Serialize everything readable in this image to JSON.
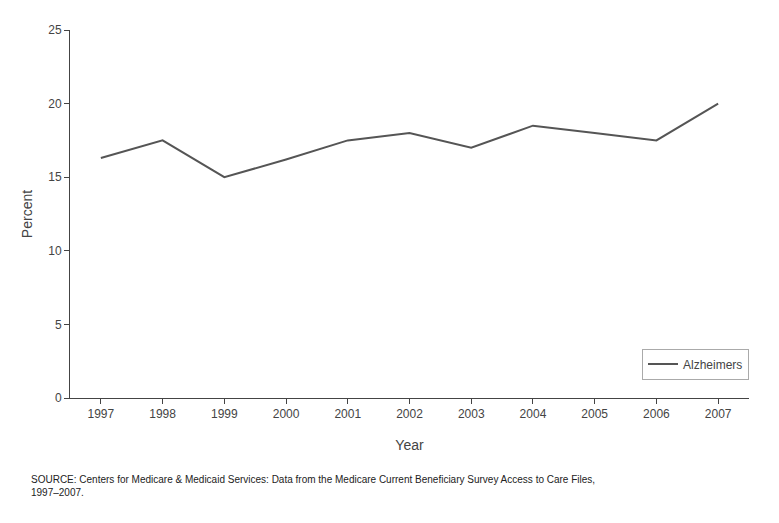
{
  "chart_data": {
    "type": "line",
    "x": [
      1997,
      1998,
      1999,
      2000,
      2001,
      2002,
      2003,
      2004,
      2005,
      2006,
      2007
    ],
    "series": [
      {
        "name": "Alzheimers",
        "color": "#555555",
        "values": [
          16.3,
          17.5,
          15.0,
          16.2,
          17.5,
          18.0,
          17.0,
          18.5,
          18.0,
          17.5,
          20.0
        ]
      }
    ],
    "xlabel": "Year",
    "ylabel": "Percent",
    "xlim": [
      1996.5,
      2007.5
    ],
    "ylim": [
      0,
      25
    ],
    "xticks": [
      1997,
      1998,
      1999,
      2000,
      2001,
      2002,
      2003,
      2004,
      2005,
      2006,
      2007
    ],
    "yticks": [
      0,
      5,
      10,
      15,
      20,
      25
    ],
    "grid": false,
    "legend": "lower right",
    "annotations": [
      "SOURCE: Centers for Medicare & Medicaid Services: Data from the Medicare Current Beneficiary Survey Access to Care Files,\n1997–2007."
    ]
  }
}
